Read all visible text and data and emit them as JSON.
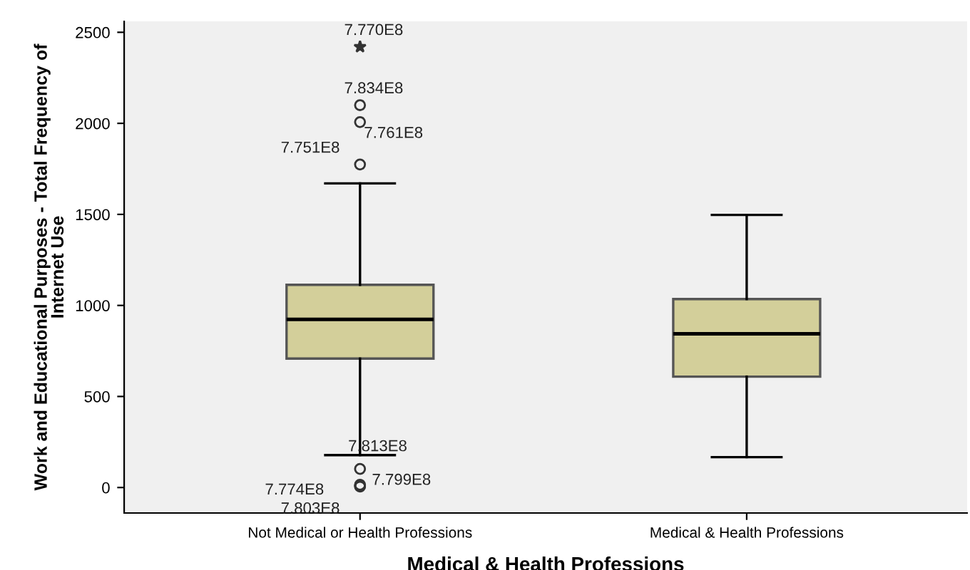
{
  "chart_data": {
    "type": "box",
    "xlabel": "Medical & Health Professions",
    "ylabel": "Work and Educational Purposes - Total Frequency of\nInternet Use",
    "categories": [
      "Not Medical or Health Professions",
      "Medical & Health Professions"
    ],
    "color": "#d3cf9a",
    "boxes": [
      {
        "low": 178,
        "q1": 708,
        "median": 923,
        "q3": 1113,
        "high": 1670,
        "outliers": [
          2420,
          2100,
          2007,
          1774,
          102,
          15,
          5,
          10
        ]
      },
      {
        "low": 167,
        "q1": 609,
        "median": 844,
        "q3": 1035,
        "high": 1497
      }
    ],
    "ylim": [
      -140,
      2560
    ],
    "yticks": [
      0,
      500,
      1000,
      1500,
      2000,
      2500
    ],
    "grid": false,
    "annotations": [
      "7.770E8",
      "7.834E8",
      "7.761E8",
      "7.751E8",
      "7.813E8",
      "7.799E8",
      "7.774E8",
      "7.803E8"
    ]
  }
}
